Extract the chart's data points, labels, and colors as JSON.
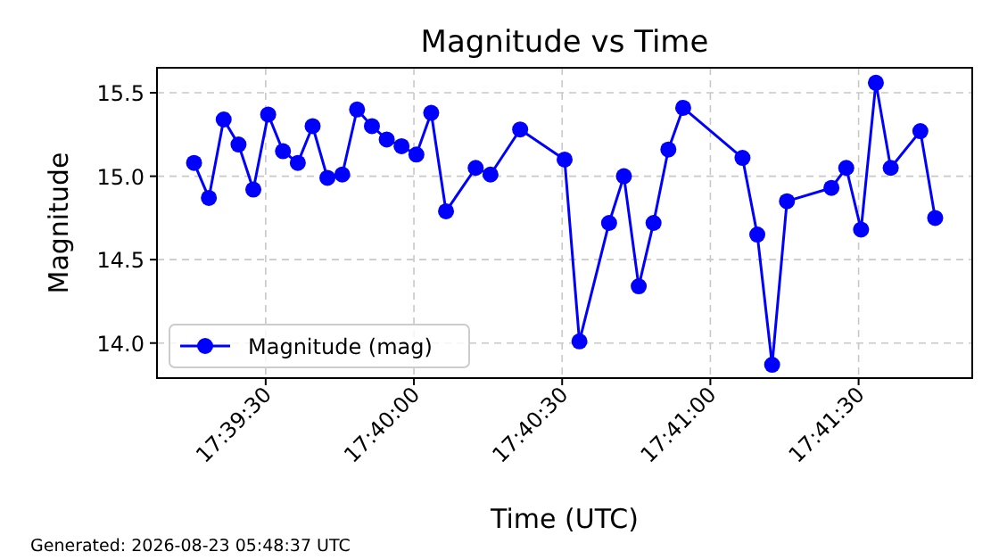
{
  "chart_data": {
    "type": "line",
    "title": "Magnitude vs Time",
    "xlabel": "Time (UTC)",
    "ylabel": "Magnitude",
    "annotations": [
      "Generated: 2026-08-23 05:48:37 UTC"
    ],
    "x": [
      17.654306,
      17.655139,
      17.655972,
      17.656806,
      17.657639,
      17.658472,
      17.659306,
      17.660139,
      17.660972,
      17.661806,
      17.662639,
      17.663472,
      17.664306,
      17.665139,
      17.665972,
      17.666806,
      17.667639,
      17.668472,
      17.670139,
      17.670972,
      17.672639,
      17.675139,
      17.675972,
      17.677639,
      17.678472,
      17.679306,
      17.680139,
      17.680972,
      17.681806,
      17.685139,
      17.685972,
      17.686806,
      17.687639,
      17.690139,
      17.690972,
      17.691806,
      17.692639,
      17.693472,
      17.695139,
      17.695972
    ],
    "series": [
      {
        "name": "Magnitude (mag)",
        "color": "#0000ff",
        "values": [
          15.08,
          14.87,
          15.34,
          15.19,
          14.92,
          15.37,
          15.15,
          15.08,
          15.3,
          14.99,
          15.01,
          15.4,
          15.3,
          15.22,
          15.18,
          15.13,
          15.38,
          14.79,
          15.05,
          15.01,
          15.28,
          15.1,
          14.01,
          14.72,
          15.0,
          14.34,
          14.72,
          15.16,
          15.41,
          15.11,
          14.65,
          13.87,
          14.85,
          14.93,
          15.05,
          14.68,
          15.56,
          15.05,
          15.27,
          14.75
        ]
      }
    ],
    "xlim": [
      17.652222,
      17.698056
    ],
    "ylim": [
      13.79,
      15.65
    ],
    "xticks": [
      {
        "value": 17.658333,
        "label": "17:39:30"
      },
      {
        "value": 17.666667,
        "label": "17:40:00"
      },
      {
        "value": 17.675,
        "label": "17:40:30"
      },
      {
        "value": 17.683333,
        "label": "17:41:00"
      },
      {
        "value": 17.691667,
        "label": "17:41:30"
      }
    ],
    "yticks": [
      {
        "value": 14,
        "label": "14.0"
      },
      14.5,
      {
        "value": 15,
        "label": "15.0"
      },
      15.5
    ],
    "grid": true,
    "legend": "bottom left",
    "marker": "circle",
    "line_style": "solid"
  }
}
